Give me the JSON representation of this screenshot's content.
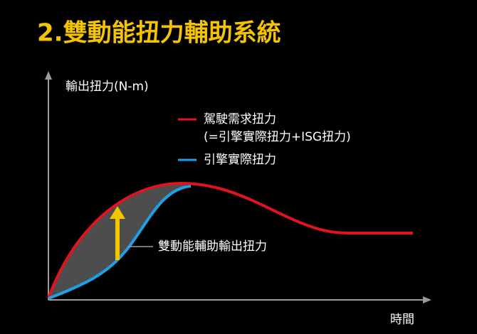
{
  "title": "2.雙動能扭力輔助系統",
  "y_axis_label": "輸出扭力(N-m)",
  "x_axis_label": "時間",
  "legend": [
    {
      "label": "駕駛需求扭力",
      "sublabel": "(=引擎實際扭力+ISG扭力)"
    },
    {
      "label": "引擎實際扭力"
    }
  ],
  "annotation": "雙動能輔助輸出扭力"
}
